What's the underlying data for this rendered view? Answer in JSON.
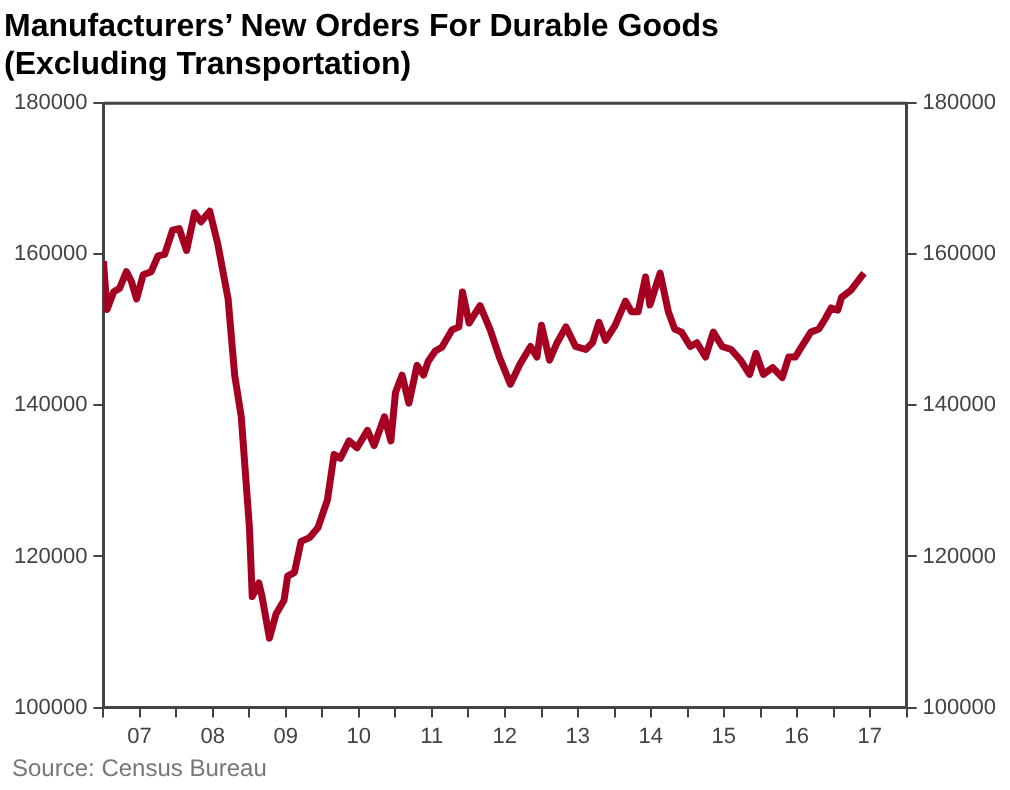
{
  "chart_data": {
    "type": "line",
    "title": "Manufacturers’ New Orders For Durable Goods\n(Excluding Transportation)",
    "annotations": [
      "Source: Census Bureau"
    ],
    "series": [
      {
        "color": "#a50021",
        "x": [
          "2007-01-01",
          "2007-01-19",
          "2007-02-21",
          "2007-03-23",
          "2007-04-26",
          "2007-05-21",
          "2007-06-16",
          "2007-07-19",
          "2007-08-28",
          "2007-10-01",
          "2007-11-03",
          "2007-12-13",
          "2008-01-15",
          "2008-02-21",
          "2008-04-01",
          "2008-05-03",
          "2008-06-16",
          "2008-07-26",
          "2008-09-16",
          "2008-10-19",
          "2008-11-21",
          "2009-01-01",
          "2009-01-15",
          "2009-02-17",
          "2009-03-05",
          "2009-04-11",
          "2009-05-14",
          "2009-06-23",
          "2009-07-11",
          "2009-08-14",
          "2009-09-16",
          "2009-10-29",
          "2009-12-09",
          "2010-01-26",
          "2010-02-28",
          "2010-04-01",
          "2010-05-14",
          "2010-06-23",
          "2010-08-14",
          "2010-09-16",
          "2010-11-07",
          "2010-12-09",
          "2011-01-01",
          "2011-02-03",
          "2011-03-09",
          "2011-04-19",
          "2011-05-21",
          "2011-06-13",
          "2011-07-19",
          "2011-08-21",
          "2011-10-11",
          "2011-11-14",
          "2011-12-02",
          "2012-01-04",
          "2012-02-28",
          "2012-04-19",
          "2012-06-05",
          "2012-07-29",
          "2012-09-16",
          "2012-11-07",
          "2012-12-09",
          "2013-01-01",
          "2013-02-10",
          "2013-03-20",
          "2013-05-03",
          "2013-06-20",
          "2013-08-10",
          "2013-09-13",
          "2013-10-15",
          "2013-11-17",
          "2014-01-04",
          "2014-02-25",
          "2014-03-27",
          "2014-04-29",
          "2014-06-05",
          "2014-06-27",
          "2014-08-17",
          "2014-09-27",
          "2014-10-29",
          "2014-12-02",
          "2015-01-15",
          "2015-02-17",
          "2015-04-01",
          "2015-05-10",
          "2015-06-23",
          "2015-08-07",
          "2015-09-23",
          "2015-11-07",
          "2015-12-09",
          "2016-01-15",
          "2016-03-02",
          "2016-04-19",
          "2016-05-21",
          "2016-06-23",
          "2016-07-26",
          "2016-09-09",
          "2016-10-19",
          "2016-11-21",
          "2016-12-20",
          "2017-01-22",
          "2017-02-10",
          "2017-03-27",
          "2017-06-02"
        ],
        "values": [
          159100,
          152700,
          155000,
          155500,
          157700,
          156400,
          154100,
          157300,
          157700,
          159800,
          160000,
          163200,
          163400,
          160500,
          165500,
          164300,
          165700,
          161400,
          154100,
          144000,
          138500,
          123800,
          114700,
          116500,
          114700,
          109200,
          112400,
          114200,
          117400,
          117900,
          122000,
          122500,
          123800,
          127500,
          133500,
          133000,
          135300,
          134400,
          136700,
          134700,
          138500,
          135300,
          141700,
          144000,
          140300,
          145300,
          144000,
          145800,
          147200,
          147700,
          150000,
          150400,
          155000,
          150900,
          153200,
          150000,
          146300,
          142800,
          145500,
          147800,
          146400,
          150600,
          146000,
          148300,
          150400,
          147800,
          147400,
          148300,
          151000,
          148600,
          150600,
          153800,
          152400,
          152400,
          157000,
          153300,
          157500,
          152400,
          150100,
          149700,
          147800,
          148300,
          146400,
          149700,
          147800,
          147400,
          146000,
          144100,
          146900,
          144100,
          145000,
          143700,
          146400,
          146400,
          147800,
          149700,
          150100,
          151500,
          152900,
          152600,
          154300,
          155200,
          157500
        ]
      }
    ],
    "xlim": [
      "2007-01-01",
      "2018-01-01"
    ],
    "xticks": [
      {
        "value": "2007-01-01",
        "label": null
      },
      {
        "value": "2007-07-01",
        "label": "07"
      },
      {
        "value": "2008-01-01",
        "label": null
      },
      {
        "value": "2008-07-01",
        "label": "08"
      },
      {
        "value": "2009-01-01",
        "label": null
      },
      {
        "value": "2009-07-01",
        "label": "09"
      },
      {
        "value": "2010-01-01",
        "label": null
      },
      {
        "value": "2010-07-01",
        "label": "10"
      },
      {
        "value": "2011-01-01",
        "label": null
      },
      {
        "value": "2011-07-01",
        "label": "11"
      },
      {
        "value": "2012-01-01",
        "label": null
      },
      {
        "value": "2012-07-01",
        "label": "12"
      },
      {
        "value": "2013-01-01",
        "label": null
      },
      {
        "value": "2013-07-01",
        "label": "13"
      },
      {
        "value": "2014-01-01",
        "label": null
      },
      {
        "value": "2014-07-01",
        "label": "14"
      },
      {
        "value": "2015-01-01",
        "label": null
      },
      {
        "value": "2015-07-01",
        "label": "15"
      },
      {
        "value": "2016-01-01",
        "label": null
      },
      {
        "value": "2016-07-01",
        "label": "16"
      },
      {
        "value": "2017-01-01",
        "label": null
      },
      {
        "value": "2017-07-01",
        "label": "17"
      },
      {
        "value": "2018-01-01",
        "label": null
      }
    ],
    "ylim": [
      100000,
      180000
    ],
    "yticks": [
      100000,
      120000,
      140000,
      160000,
      180000
    ],
    "y2lim": [
      100000,
      180000
    ],
    "y2ticks": [
      100000,
      120000,
      140000,
      160000,
      180000
    ],
    "grid": false,
    "legend": false,
    "marker": "none",
    "line_style": "solid"
  }
}
